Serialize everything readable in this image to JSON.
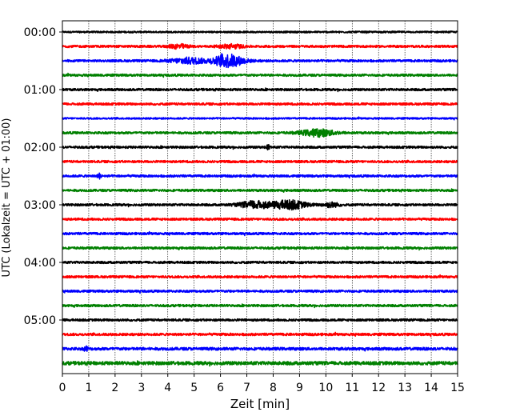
{
  "chart_data": {
    "type": "line",
    "title": "",
    "xlabel": "Zeit  [min]",
    "ylabel": "UTC (Lokalzeit = UTC + 01:00)",
    "xlim": [
      0,
      15
    ],
    "x_ticks": [
      "0",
      "1",
      "2",
      "3",
      "4",
      "5",
      "6",
      "7",
      "8",
      "9",
      "10",
      "11",
      "12",
      "13",
      "14",
      "15"
    ],
    "y_tick_labels": [
      "00:00",
      "01:00",
      "02:00",
      "03:00",
      "04:00",
      "05:00"
    ],
    "y_tick_trace_index": [
      0,
      4,
      8,
      12,
      16,
      20
    ],
    "grid_vertical": true,
    "trace_colors": [
      "#000000",
      "#ff0000",
      "#0000ff",
      "#008000"
    ],
    "series": [
      {
        "start": "00:00",
        "color": "#000000",
        "amplitude": 0.15,
        "events": []
      },
      {
        "start": "00:15",
        "color": "#ff0000",
        "amplitude": 0.2,
        "events": [
          {
            "t": 4.4,
            "amp": 0.35,
            "width": 0.5
          },
          {
            "t": 6.4,
            "amp": 0.35,
            "width": 0.6
          }
        ]
      },
      {
        "start": "00:30",
        "color": "#0000ff",
        "amplitude": 0.2,
        "events": [
          {
            "t": 4.8,
            "amp": 0.5,
            "width": 0.9
          },
          {
            "t": 6.3,
            "amp": 1.1,
            "width": 0.8
          }
        ]
      },
      {
        "start": "00:45",
        "color": "#008000",
        "amplitude": 0.2,
        "events": []
      },
      {
        "start": "01:00",
        "color": "#000000",
        "amplitude": 0.2,
        "events": []
      },
      {
        "start": "01:15",
        "color": "#ff0000",
        "amplitude": 0.2,
        "events": []
      },
      {
        "start": "01:30",
        "color": "#0000ff",
        "amplitude": 0.15,
        "events": []
      },
      {
        "start": "01:45",
        "color": "#008000",
        "amplitude": 0.2,
        "events": [
          {
            "t": 9.7,
            "amp": 0.6,
            "width": 0.9
          }
        ]
      },
      {
        "start": "02:00",
        "color": "#000000",
        "amplitude": 0.2,
        "events": [
          {
            "t": 7.8,
            "amp": 0.4,
            "width": 0.1
          }
        ]
      },
      {
        "start": "02:15",
        "color": "#ff0000",
        "amplitude": 0.2,
        "events": []
      },
      {
        "start": "02:30",
        "color": "#0000ff",
        "amplitude": 0.2,
        "events": [
          {
            "t": 1.4,
            "amp": 0.4,
            "width": 0.1
          }
        ]
      },
      {
        "start": "02:45",
        "color": "#008000",
        "amplitude": 0.2,
        "events": []
      },
      {
        "start": "03:00",
        "color": "#000000",
        "amplitude": 0.2,
        "events": [
          {
            "t": 7.3,
            "amp": 0.6,
            "width": 0.8
          },
          {
            "t": 8.6,
            "amp": 0.75,
            "width": 0.9
          },
          {
            "t": 10.2,
            "amp": 0.4,
            "width": 0.4
          }
        ]
      },
      {
        "start": "03:15",
        "color": "#ff0000",
        "amplitude": 0.2,
        "events": []
      },
      {
        "start": "03:30",
        "color": "#0000ff",
        "amplitude": 0.2,
        "events": []
      },
      {
        "start": "03:45",
        "color": "#008000",
        "amplitude": 0.2,
        "events": []
      },
      {
        "start": "04:00",
        "color": "#000000",
        "amplitude": 0.2,
        "events": []
      },
      {
        "start": "04:15",
        "color": "#ff0000",
        "amplitude": 0.2,
        "events": []
      },
      {
        "start": "04:30",
        "color": "#0000ff",
        "amplitude": 0.2,
        "events": []
      },
      {
        "start": "04:45",
        "color": "#008000",
        "amplitude": 0.2,
        "events": []
      },
      {
        "start": "05:00",
        "color": "#000000",
        "amplitude": 0.2,
        "events": []
      },
      {
        "start": "05:15",
        "color": "#ff0000",
        "amplitude": 0.22,
        "events": []
      },
      {
        "start": "05:30",
        "color": "#0000ff",
        "amplitude": 0.25,
        "events": [
          {
            "t": 0.9,
            "amp": 0.4,
            "width": 0.1
          }
        ]
      },
      {
        "start": "05:45",
        "color": "#008000",
        "amplitude": 0.3,
        "events": []
      }
    ]
  }
}
